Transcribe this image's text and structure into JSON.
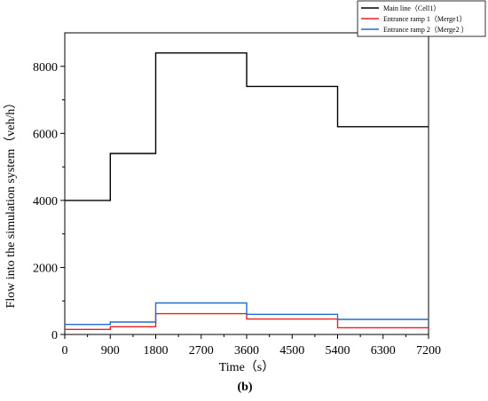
{
  "chart_data": {
    "type": "line",
    "step": true,
    "xlabel": "Time（s）",
    "ylabel": "Flow into the simulation system（veh/h）",
    "caption": "(b)",
    "xlim": [
      0,
      7200
    ],
    "ylim": [
      0,
      9000
    ],
    "xticks": [
      "0",
      "900",
      "1800",
      "2700",
      "3600",
      "4500",
      "5400",
      "6300",
      "7200"
    ],
    "yticks": [
      "0",
      "2000",
      "4000",
      "6000",
      "8000"
    ],
    "grid": false,
    "legend_position": "top-right",
    "series": [
      {
        "name": "Main line（Cell1）",
        "color": "#000000",
        "x": [
          0,
          900,
          900,
          1800,
          1800,
          3600,
          3600,
          5400,
          5400,
          7200
        ],
        "y": [
          4000,
          4000,
          5400,
          5400,
          8400,
          8400,
          7400,
          7400,
          6200,
          6200
        ]
      },
      {
        "name": "Entrance ramp 1（Merge1）",
        "color": "#e8201f",
        "x": [
          0,
          900,
          900,
          1800,
          1800,
          3600,
          3600,
          5400,
          5400,
          7200
        ],
        "y": [
          150,
          150,
          230,
          230,
          620,
          620,
          460,
          460,
          200,
          200
        ]
      },
      {
        "name": "Entrance ramp 2（Merge2 ）",
        "color": "#1f6fd1",
        "x": [
          0,
          900,
          900,
          1800,
          1800,
          3600,
          3600,
          5400,
          5400,
          7200
        ],
        "y": [
          300,
          300,
          370,
          370,
          940,
          940,
          600,
          600,
          450,
          450
        ]
      }
    ]
  }
}
